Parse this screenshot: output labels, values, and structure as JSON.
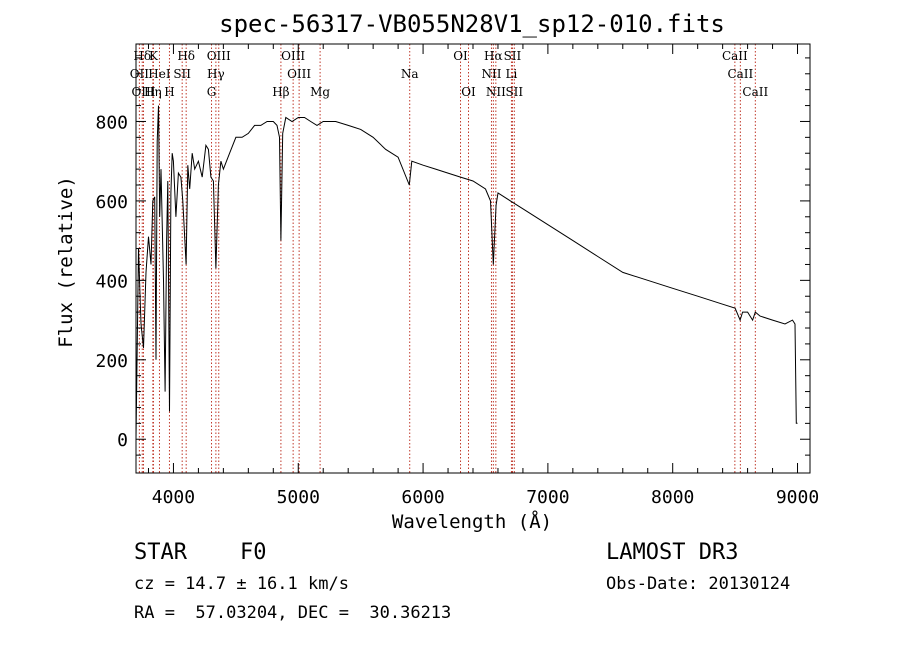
{
  "chart_data": {
    "type": "line",
    "title": "spec-56317-VB055N28V1_sp12-010.fits",
    "xlabel": "Wavelength (Å)",
    "ylabel": "Flux (relative)",
    "xlim": [
      3700,
      9100
    ],
    "ylim": [
      -85,
      995
    ],
    "xticks": [
      4000,
      5000,
      6000,
      7000,
      8000,
      9000
    ],
    "xtick_labels": [
      "4000",
      "5000",
      "6000",
      "7000",
      "8000",
      "9000"
    ],
    "yticks": [
      0,
      200,
      400,
      600,
      800
    ],
    "ytick_labels": [
      "0",
      "200",
      "400",
      "600",
      "800"
    ],
    "spectrum": {
      "x": [
        3700,
        3720,
        3740,
        3760,
        3780,
        3800,
        3820,
        3835,
        3850,
        3860,
        3870,
        3880,
        3890,
        3900,
        3920,
        3933,
        3945,
        3955,
        3968,
        3980,
        3990,
        4000,
        4020,
        4040,
        4060,
        4075,
        4101,
        4115,
        4130,
        4150,
        4170,
        4200,
        4230,
        4260,
        4280,
        4300,
        4320,
        4340,
        4360,
        4380,
        4400,
        4450,
        4500,
        4550,
        4600,
        4650,
        4700,
        4750,
        4800,
        4830,
        4850,
        4861,
        4875,
        4900,
        4950,
        5000,
        5050,
        5100,
        5150,
        5200,
        5300,
        5400,
        5500,
        5600,
        5700,
        5800,
        5890,
        5910,
        6000,
        6100,
        6200,
        6300,
        6400,
        6500,
        6540,
        6563,
        6585,
        6600,
        6700,
        6800,
        7000,
        7200,
        7400,
        7600,
        7800,
        8000,
        8200,
        8400,
        8500,
        8540,
        8560,
        8600,
        8640,
        8662,
        8700,
        8800,
        8900,
        8960,
        8980,
        8990,
        9000
      ],
      "y": [
        0,
        480,
        290,
        230,
        420,
        510,
        440,
        600,
        610,
        200,
        750,
        840,
        560,
        680,
        400,
        120,
        500,
        650,
        70,
        620,
        720,
        700,
        560,
        670,
        660,
        600,
        440,
        690,
        630,
        720,
        680,
        700,
        660,
        740,
        730,
        660,
        650,
        430,
        640,
        700,
        680,
        720,
        760,
        760,
        770,
        790,
        790,
        800,
        800,
        790,
        760,
        500,
        770,
        810,
        800,
        810,
        810,
        800,
        790,
        800,
        800,
        790,
        780,
        760,
        730,
        710,
        640,
        700,
        690,
        680,
        670,
        660,
        650,
        630,
        600,
        440,
        590,
        620,
        600,
        580,
        540,
        500,
        460,
        420,
        400,
        380,
        360,
        340,
        330,
        300,
        320,
        320,
        300,
        320,
        310,
        300,
        290,
        300,
        290,
        40,
        40
      ]
    },
    "lines": [
      {
        "label": "Hδ",
        "wave": 3750
      },
      {
        "label": "OII",
        "wave": 3727
      },
      {
        "label": "OIII",
        "wave": 3760
      },
      {
        "label": "K",
        "wave": 3840
      },
      {
        "label": "HeI",
        "wave": 3888
      },
      {
        "label": "Hη",
        "wave": 3835
      },
      {
        "label": "H",
        "wave": 3968
      },
      {
        "label": "SII",
        "wave": 4070
      },
      {
        "label": "Hδ",
        "wave": 4102
      },
      {
        "label": "OIII",
        "wave": 4363
      },
      {
        "label": "Hγ",
        "wave": 4340
      },
      {
        "label": "G",
        "wave": 4305
      },
      {
        "label": "Hβ",
        "wave": 4861
      },
      {
        "label": "OIII",
        "wave": 4959
      },
      {
        "label": "OIII",
        "wave": 5007
      },
      {
        "label": "Mg",
        "wave": 5175
      },
      {
        "label": "Na",
        "wave": 5893
      },
      {
        "label": "OI",
        "wave": 6300
      },
      {
        "label": "OI",
        "wave": 6364
      },
      {
        "label": "Hα",
        "wave": 6563
      },
      {
        "label": "NII",
        "wave": 6548
      },
      {
        "label": "NII",
        "wave": 6583
      },
      {
        "label": "SII",
        "wave": 6716
      },
      {
        "label": "Li",
        "wave": 6708
      },
      {
        "label": "SII",
        "wave": 6731
      },
      {
        "label": "CaII",
        "wave": 8498
      },
      {
        "label": "CaII",
        "wave": 8542
      },
      {
        "label": "CaII",
        "wave": 8662
      }
    ]
  },
  "info": {
    "class": "STAR",
    "subclass": "F0",
    "cz": "cz = 14.7 ± 16.1 km/s",
    "radec": "RA =  57.03204, DEC =  30.36213",
    "survey": "LAMOST DR3",
    "obs_date": "Obs-Date: 20130124"
  }
}
